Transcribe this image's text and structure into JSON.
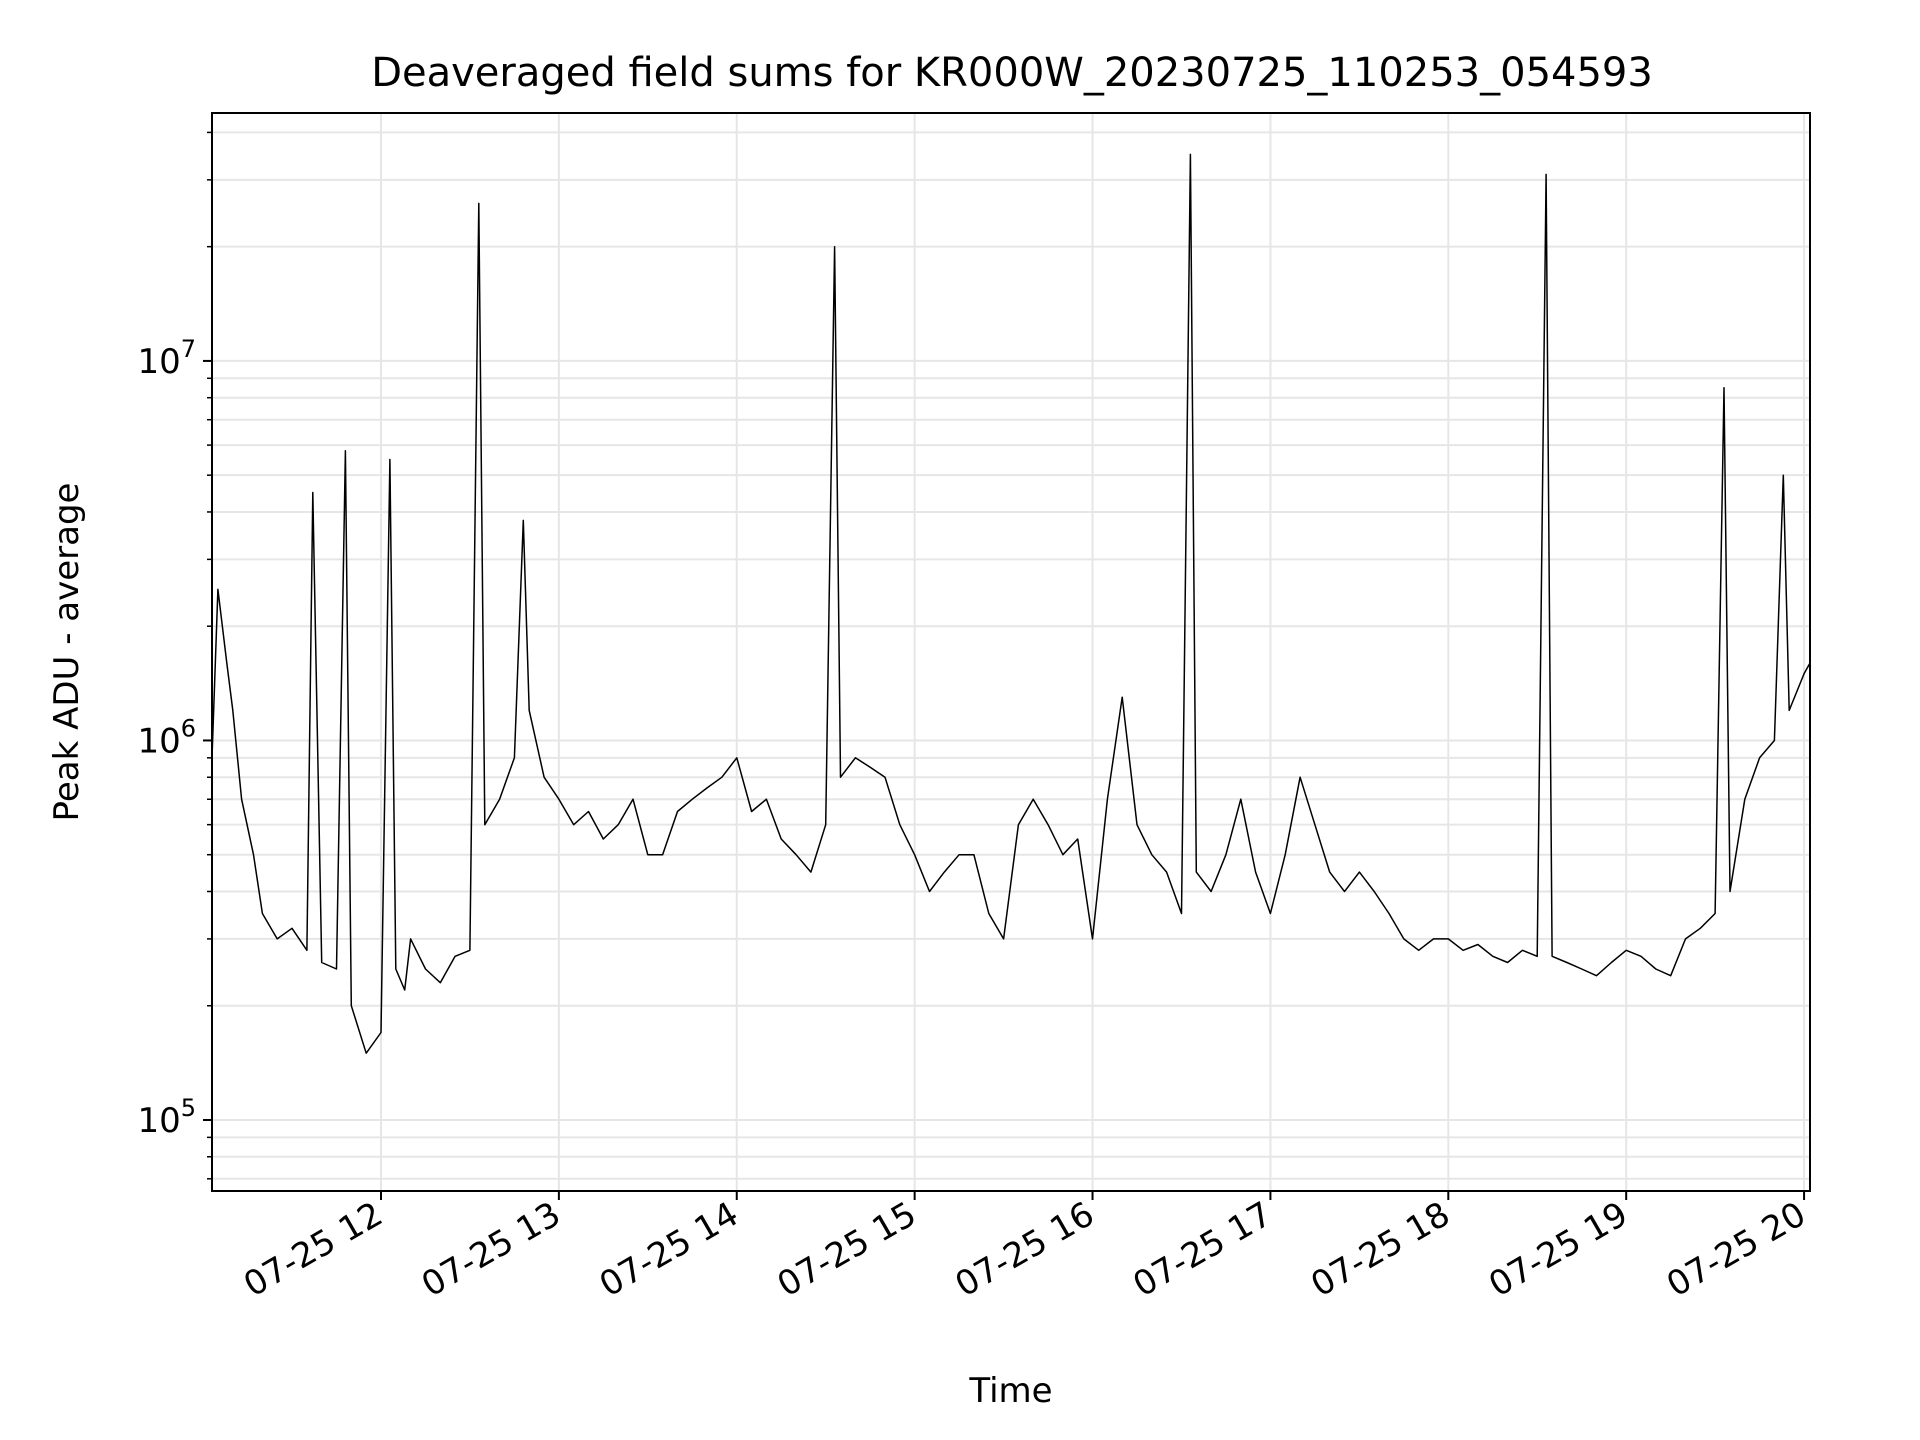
{
  "chart_data": {
    "type": "line",
    "title": "Deaveraged field sums for KR000W_20230725_110253_054593",
    "xlabel": "Time",
    "ylabel": "Peak ADU - average",
    "yscale": "log",
    "grid": true,
    "legend": "none",
    "line_color": "#000000",
    "grid_color": "#e6e6e6",
    "xlim": [
      "2023-07-25 11:03",
      "2023-07-25 20:02"
    ],
    "ylim": [
      65000,
      45000000
    ],
    "x_ticks": [
      {
        "time": "2023-07-25 12:00",
        "label": "07-25 12"
      },
      {
        "time": "2023-07-25 13:00",
        "label": "07-25 13"
      },
      {
        "time": "2023-07-25 14:00",
        "label": "07-25 14"
      },
      {
        "time": "2023-07-25 15:00",
        "label": "07-25 15"
      },
      {
        "time": "2023-07-25 16:00",
        "label": "07-25 16"
      },
      {
        "time": "2023-07-25 17:00",
        "label": "07-25 17"
      },
      {
        "time": "2023-07-25 18:00",
        "label": "07-25 18"
      },
      {
        "time": "2023-07-25 19:00",
        "label": "07-25 19"
      },
      {
        "time": "2023-07-25 20:00",
        "label": "07-25 20"
      }
    ],
    "y_ticks": [
      {
        "value": 100000,
        "base": "10",
        "exp": "5"
      },
      {
        "value": 1000000,
        "base": "10",
        "exp": "6"
      },
      {
        "value": 10000000,
        "base": "10",
        "exp": "7"
      }
    ],
    "series": [
      {
        "x": [
          "2023-07-25 11:03",
          "2023-07-25 11:05",
          "2023-07-25 11:08",
          "2023-07-25 11:10",
          "2023-07-25 11:13",
          "2023-07-25 11:17",
          "2023-07-25 11:20",
          "2023-07-25 11:25",
          "2023-07-25 11:30",
          "2023-07-25 11:35",
          "2023-07-25 11:37",
          "2023-07-25 11:40",
          "2023-07-25 11:45",
          "2023-07-25 11:48",
          "2023-07-25 11:50",
          "2023-07-25 11:55",
          "2023-07-25 12:00",
          "2023-07-25 12:03",
          "2023-07-25 12:05",
          "2023-07-25 12:08",
          "2023-07-25 12:10",
          "2023-07-25 12:15",
          "2023-07-25 12:20",
          "2023-07-25 12:25",
          "2023-07-25 12:30",
          "2023-07-25 12:33",
          "2023-07-25 12:35",
          "2023-07-25 12:40",
          "2023-07-25 12:45",
          "2023-07-25 12:48",
          "2023-07-25 12:50",
          "2023-07-25 12:55",
          "2023-07-25 13:00",
          "2023-07-25 13:05",
          "2023-07-25 13:10",
          "2023-07-25 13:15",
          "2023-07-25 13:20",
          "2023-07-25 13:25",
          "2023-07-25 13:30",
          "2023-07-25 13:35",
          "2023-07-25 13:40",
          "2023-07-25 13:45",
          "2023-07-25 13:50",
          "2023-07-25 13:55",
          "2023-07-25 14:00",
          "2023-07-25 14:05",
          "2023-07-25 14:10",
          "2023-07-25 14:15",
          "2023-07-25 14:20",
          "2023-07-25 14:25",
          "2023-07-25 14:30",
          "2023-07-25 14:33",
          "2023-07-25 14:35",
          "2023-07-25 14:40",
          "2023-07-25 14:45",
          "2023-07-25 14:50",
          "2023-07-25 14:55",
          "2023-07-25 15:00",
          "2023-07-25 15:05",
          "2023-07-25 15:10",
          "2023-07-25 15:15",
          "2023-07-25 15:20",
          "2023-07-25 15:25",
          "2023-07-25 15:30",
          "2023-07-25 15:35",
          "2023-07-25 15:40",
          "2023-07-25 15:45",
          "2023-07-25 15:50",
          "2023-07-25 15:55",
          "2023-07-25 16:00",
          "2023-07-25 16:05",
          "2023-07-25 16:10",
          "2023-07-25 16:15",
          "2023-07-25 16:20",
          "2023-07-25 16:25",
          "2023-07-25 16:30",
          "2023-07-25 16:33",
          "2023-07-25 16:35",
          "2023-07-25 16:40",
          "2023-07-25 16:45",
          "2023-07-25 16:50",
          "2023-07-25 16:55",
          "2023-07-25 17:00",
          "2023-07-25 17:05",
          "2023-07-25 17:10",
          "2023-07-25 17:15",
          "2023-07-25 17:20",
          "2023-07-25 17:25",
          "2023-07-25 17:30",
          "2023-07-25 17:35",
          "2023-07-25 17:40",
          "2023-07-25 17:45",
          "2023-07-25 17:50",
          "2023-07-25 17:55",
          "2023-07-25 18:00",
          "2023-07-25 18:05",
          "2023-07-25 18:10",
          "2023-07-25 18:15",
          "2023-07-25 18:20",
          "2023-07-25 18:25",
          "2023-07-25 18:30",
          "2023-07-25 18:33",
          "2023-07-25 18:35",
          "2023-07-25 18:40",
          "2023-07-25 18:45",
          "2023-07-25 18:50",
          "2023-07-25 18:55",
          "2023-07-25 19:00",
          "2023-07-25 19:05",
          "2023-07-25 19:10",
          "2023-07-25 19:15",
          "2023-07-25 19:20",
          "2023-07-25 19:25",
          "2023-07-25 19:30",
          "2023-07-25 19:33",
          "2023-07-25 19:35",
          "2023-07-25 19:40",
          "2023-07-25 19:45",
          "2023-07-25 19:50",
          "2023-07-25 19:53",
          "2023-07-25 19:55",
          "2023-07-25 20:00",
          "2023-07-25 20:02"
        ],
        "y": [
          900000,
          2500000,
          1600000,
          1200000,
          700000,
          500000,
          350000,
          300000,
          320000,
          280000,
          4500000,
          260000,
          250000,
          5800000,
          200000,
          150000,
          170000,
          5500000,
          250000,
          220000,
          300000,
          250000,
          230000,
          270000,
          280000,
          26000000,
          600000,
          700000,
          900000,
          3800000,
          1200000,
          800000,
          700000,
          600000,
          650000,
          550000,
          600000,
          700000,
          500000,
          500000,
          650000,
          700000,
          750000,
          800000,
          900000,
          650000,
          700000,
          550000,
          500000,
          450000,
          600000,
          20000000,
          800000,
          900000,
          850000,
          800000,
          600000,
          500000,
          400000,
          450000,
          500000,
          500000,
          350000,
          300000,
          600000,
          700000,
          600000,
          500000,
          550000,
          300000,
          700000,
          1300000,
          600000,
          500000,
          450000,
          350000,
          35000000,
          450000,
          400000,
          500000,
          700000,
          450000,
          350000,
          500000,
          800000,
          600000,
          450000,
          400000,
          450000,
          400000,
          350000,
          300000,
          280000,
          300000,
          300000,
          280000,
          290000,
          270000,
          260000,
          280000,
          270000,
          31000000,
          270000,
          260000,
          250000,
          240000,
          260000,
          280000,
          270000,
          250000,
          240000,
          300000,
          320000,
          350000,
          8500000,
          400000,
          700000,
          900000,
          1000000,
          5000000,
          1200000,
          1500000,
          1600000
        ]
      }
    ]
  }
}
